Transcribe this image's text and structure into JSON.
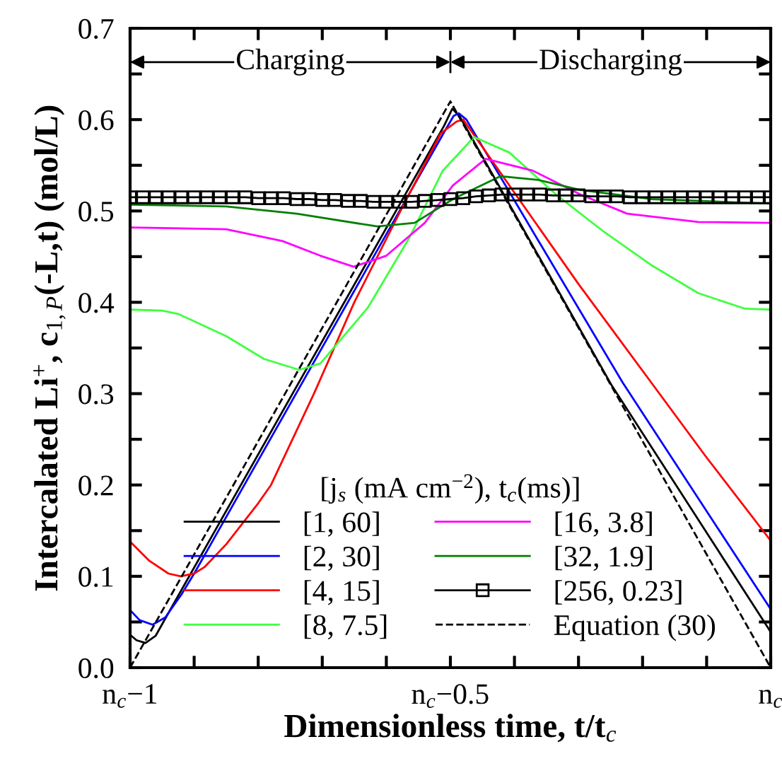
{
  "chart_data": {
    "type": "line",
    "xlabel": "Dimensionless time, t/t$_{c}$",
    "ylabel": "Intercalated Li$^{+}$, c$_{1,P}$(-L,t) (mol/L)",
    "legend_title": "[j$_{s}$ (mA cm$^{−2}$), t$_{c}$(ms)]",
    "legend": "bottom",
    "grid": false,
    "xlim": [
      -1,
      0
    ],
    "ylim": [
      0,
      0.7
    ],
    "xticks": [
      {
        "value": -1,
        "label": "n$_{c}$−1"
      },
      {
        "value": -0.9,
        "label": null
      },
      {
        "value": -0.8,
        "label": null
      },
      {
        "value": -0.7,
        "label": null
      },
      {
        "value": -0.6,
        "label": null
      },
      {
        "value": -0.5,
        "label": "n$_{c}$−0.5"
      },
      {
        "value": -0.4,
        "label": null
      },
      {
        "value": -0.3,
        "label": null
      },
      {
        "value": -0.2,
        "label": null
      },
      {
        "value": -0.1,
        "label": null
      },
      {
        "value": 0,
        "label": "n$_{c}$"
      }
    ],
    "yticks": [
      {
        "value": 0,
        "label": "0.0"
      },
      {
        "value": 0.05,
        "label": null
      },
      {
        "value": 0.1,
        "label": "0.1"
      },
      {
        "value": 0.15,
        "label": null
      },
      {
        "value": 0.2,
        "label": "0.2"
      },
      {
        "value": 0.25,
        "label": null
      },
      {
        "value": 0.3,
        "label": "0.3"
      },
      {
        "value": 0.35,
        "label": null
      },
      {
        "value": 0.4,
        "label": "0.4"
      },
      {
        "value": 0.45,
        "label": null
      },
      {
        "value": 0.5,
        "label": "0.5"
      },
      {
        "value": 0.55,
        "label": null
      },
      {
        "value": 0.6,
        "label": "0.6"
      },
      {
        "value": 0.65,
        "label": null
      },
      {
        "value": 0.7,
        "label": "0.7"
      }
    ],
    "annotations": [
      "Charging",
      "Discharging"
    ],
    "series": [
      {
        "name": "[1, 60]",
        "color": "#000000",
        "line_style": "solid",
        "marker": "none",
        "x": [
          -1,
          -0.99,
          -0.976,
          -0.96,
          -0.94,
          -0.51,
          -0.497,
          -0.485,
          -0.249,
          0
        ],
        "values": [
          0.036,
          0.03,
          0.027,
          0.035,
          0.06,
          0.593,
          0.612,
          0.603,
          0.31,
          0.039
        ]
      },
      {
        "name": "[2, 30]",
        "color": "#0000ff",
        "line_style": "solid",
        "marker": "none",
        "x": [
          -1,
          -0.985,
          -0.965,
          -0.945,
          -0.92,
          -0.9,
          -0.51,
          -0.495,
          -0.487,
          -0.475,
          -0.231,
          0
        ],
        "values": [
          0.063,
          0.052,
          0.047,
          0.055,
          0.08,
          0.103,
          0.586,
          0.604,
          0.607,
          0.6,
          0.312,
          0.064
        ]
      },
      {
        "name": "[4, 15]",
        "color": "#ff0000",
        "line_style": "solid",
        "marker": "none",
        "x": [
          -1,
          -0.97,
          -0.94,
          -0.921,
          -0.9,
          -0.884,
          -0.85,
          -0.8,
          -0.78,
          -0.713,
          -0.65,
          -0.578,
          -0.515,
          -0.49,
          -0.48,
          -0.47,
          -0.4,
          -0.3,
          -0.2,
          -0.1,
          0
        ],
        "values": [
          0.138,
          0.117,
          0.103,
          0.1,
          0.103,
          0.11,
          0.135,
          0.18,
          0.2,
          0.3,
          0.4,
          0.5,
          0.585,
          0.598,
          0.6,
          0.59,
          0.52,
          0.42,
          0.325,
          0.23,
          0.139
        ]
      },
      {
        "name": "[8, 7.5]",
        "color": "#40ff40",
        "line_style": "solid",
        "marker": "none",
        "x": [
          -1,
          -0.95,
          -0.924,
          -0.85,
          -0.791,
          -0.736,
          -0.703,
          -0.629,
          -0.563,
          -0.512,
          -0.463,
          -0.408,
          -0.335,
          -0.26,
          -0.187,
          -0.113,
          -0.04,
          0
        ],
        "values": [
          0.392,
          0.391,
          0.387,
          0.363,
          0.338,
          0.326,
          0.333,
          0.394,
          0.472,
          0.544,
          0.581,
          0.564,
          0.518,
          0.477,
          0.441,
          0.41,
          0.393,
          0.392
        ]
      },
      {
        "name": "[16, 3.8]",
        "color": "#ff00ff",
        "line_style": "solid",
        "marker": "none",
        "x": [
          -1,
          -0.85,
          -0.762,
          -0.703,
          -0.651,
          -0.6,
          -0.54,
          -0.496,
          -0.445,
          -0.371,
          -0.297,
          -0.224,
          -0.113,
          0
        ],
        "values": [
          0.482,
          0.48,
          0.467,
          0.451,
          0.439,
          0.451,
          0.487,
          0.528,
          0.557,
          0.544,
          0.518,
          0.497,
          0.488,
          0.487
        ]
      },
      {
        "name": "[32, 1.9]",
        "color": "#008000",
        "line_style": "solid",
        "marker": "none",
        "x": [
          -1,
          -0.85,
          -0.74,
          -0.614,
          -0.556,
          -0.496,
          -0.422,
          -0.363,
          -0.297,
          -0.187,
          0
        ],
        "values": [
          0.507,
          0.505,
          0.497,
          0.483,
          0.487,
          0.513,
          0.538,
          0.534,
          0.523,
          0.513,
          0.508
        ]
      },
      {
        "name": "[256, 0.23]",
        "color": "#000000",
        "line_style": "solid",
        "marker": "square",
        "x": [
          -1,
          -0.98,
          -0.96,
          -0.94,
          -0.92,
          -0.9,
          -0.88,
          -0.86,
          -0.84,
          -0.82,
          -0.8,
          -0.78,
          -0.76,
          -0.74,
          -0.72,
          -0.7,
          -0.68,
          -0.66,
          -0.64,
          -0.62,
          -0.6,
          -0.58,
          -0.56,
          -0.54,
          -0.52,
          -0.5,
          -0.48,
          -0.46,
          -0.44,
          -0.42,
          -0.4,
          -0.38,
          -0.36,
          -0.34,
          -0.32,
          -0.3,
          -0.28,
          -0.26,
          -0.24,
          -0.22,
          -0.2,
          -0.18,
          -0.16,
          -0.14,
          -0.12,
          -0.1,
          -0.08,
          -0.06,
          -0.04,
          -0.02,
          0
        ],
        "values": [
          0.515,
          0.515,
          0.515,
          0.515,
          0.515,
          0.515,
          0.515,
          0.515,
          0.515,
          0.515,
          0.514,
          0.514,
          0.514,
          0.513,
          0.513,
          0.512,
          0.512,
          0.511,
          0.511,
          0.51,
          0.51,
          0.51,
          0.51,
          0.511,
          0.512,
          0.513,
          0.514,
          0.516,
          0.517,
          0.518,
          0.518,
          0.518,
          0.518,
          0.517,
          0.517,
          0.517,
          0.516,
          0.516,
          0.516,
          0.515,
          0.515,
          0.515,
          0.515,
          0.515,
          0.515,
          0.515,
          0.515,
          0.515,
          0.515,
          0.515,
          0.515
        ]
      },
      {
        "name": "Equation (30)",
        "color": "#000000",
        "line_style": "dashed",
        "marker": "none",
        "x": [
          -1,
          -0.5,
          0
        ],
        "values": [
          0.0,
          0.62,
          0.0
        ]
      }
    ]
  }
}
